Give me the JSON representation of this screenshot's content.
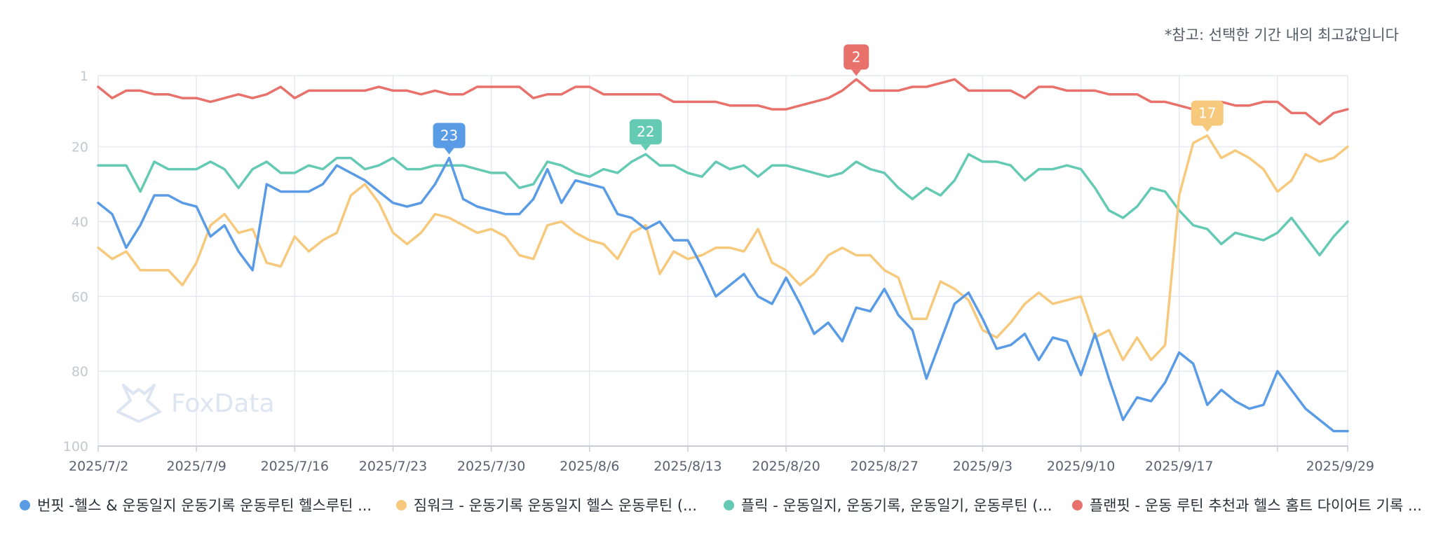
{
  "note": "*참고: 선택한 기간 내의 최고값입니다",
  "watermark": "FoxData",
  "colors": {
    "blue": "#5a9be6",
    "yellow": "#f6c97c",
    "teal": "#65cab4",
    "red": "#e8716b",
    "grid": "#e6e9ef",
    "axis": "#c9ced6"
  },
  "legend": [
    {
      "label": "번핏 -헬스 & 운동일지 운동기록 운동루틴 헬스루틴 ...",
      "color": "#5a9be6"
    },
    {
      "label": "짐워크 - 운동기록 운동일지 헬스 운동루틴 (...",
      "color": "#f6c97c"
    },
    {
      "label": "플릭 - 운동일지, 운동기록, 운동일기, 운동루틴 (...",
      "color": "#65cab4"
    },
    {
      "label": "플랜핏 - 운동 루틴 추천과 헬스 홈트 다이어트 기록 ...",
      "color": "#e8716b"
    }
  ],
  "chart_data": {
    "type": "line",
    "x_start": "2025/7/2",
    "x_end": "2025/9/29",
    "x_tick_labels": [
      "2025/7/2",
      "2025/7/9",
      "2025/7/16",
      "2025/7/23",
      "2025/7/30",
      "2025/8/6",
      "2025/8/13",
      "2025/8/20",
      "2025/8/27",
      "2025/9/3",
      "2025/9/10",
      "2025/9/17",
      "2025/9/29"
    ],
    "y_tick_labels": [
      "1",
      "20",
      "40",
      "60",
      "80",
      "100"
    ],
    "y_reversed": true,
    "ylim": [
      1,
      100
    ],
    "grid": true,
    "legend_position": "bottom",
    "series": [
      {
        "name": "번핏 -헬스 & 운동일지 운동기록 운동루틴 헬스루틴 ...",
        "color": "#5a9be6",
        "values": [
          35,
          38,
          47,
          41,
          33,
          33,
          35,
          36,
          44,
          41,
          48,
          53,
          30,
          32,
          32,
          32,
          30,
          25,
          27,
          29,
          32,
          35,
          36,
          35,
          30,
          23,
          34,
          36,
          37,
          38,
          38,
          34,
          26,
          35,
          29,
          30,
          31,
          38,
          39,
          42,
          40,
          45,
          45,
          52,
          60,
          57,
          54,
          60,
          62,
          55,
          62,
          70,
          67,
          72,
          63,
          64,
          58,
          65,
          69,
          82,
          72,
          62,
          59,
          66,
          74,
          73,
          70,
          77,
          71,
          72,
          81,
          70,
          82,
          93,
          87,
          88,
          83,
          75,
          78,
          89,
          85,
          88,
          90,
          89,
          80,
          85,
          90,
          93,
          96,
          96
        ]
      },
      {
        "name": "짐워크 - 운동기록 운동일지 헬스 운동루틴 (...",
        "color": "#f6c97c",
        "values": [
          47,
          50,
          48,
          53,
          53,
          53,
          57,
          51,
          41,
          38,
          43,
          42,
          51,
          52,
          44,
          48,
          45,
          43,
          33,
          30,
          35,
          43,
          46,
          43,
          38,
          39,
          41,
          43,
          42,
          44,
          49,
          50,
          41,
          40,
          43,
          45,
          46,
          50,
          43,
          41,
          54,
          48,
          50,
          49,
          47,
          47,
          48,
          42,
          51,
          53,
          57,
          54,
          49,
          47,
          49,
          49,
          53,
          55,
          66,
          66,
          56,
          58,
          61,
          69,
          71,
          67,
          62,
          59,
          62,
          61,
          60,
          71,
          69,
          77,
          71,
          77,
          73,
          33,
          19,
          17,
          23,
          21,
          23,
          26,
          32,
          29,
          22,
          24,
          23,
          20
        ]
      },
      {
        "name": "플릭 - 운동일지, 운동기록, 운동일기, 운동루틴 (...",
        "color": "#65cab4",
        "values": [
          25,
          25,
          25,
          32,
          24,
          26,
          26,
          26,
          24,
          26,
          31,
          26,
          24,
          27,
          27,
          25,
          26,
          23,
          23,
          26,
          25,
          23,
          26,
          26,
          25,
          25,
          25,
          26,
          27,
          27,
          31,
          30,
          24,
          25,
          27,
          28,
          26,
          27,
          24,
          22,
          25,
          25,
          27,
          28,
          24,
          26,
          25,
          28,
          25,
          25,
          26,
          27,
          28,
          27,
          24,
          26,
          27,
          31,
          34,
          31,
          33,
          29,
          22,
          24,
          24,
          25,
          29,
          26,
          26,
          25,
          26,
          31,
          37,
          39,
          36,
          31,
          32,
          37,
          41,
          42,
          46,
          43,
          44,
          45,
          43,
          39,
          44,
          49,
          44,
          40
        ]
      },
      {
        "name": "플랜핏 - 운동 루틴 추천과 헬스 홈트 다이어트 기록 ...",
        "color": "#e8716b",
        "values": [
          4,
          7,
          5,
          5,
          6,
          6,
          7,
          7,
          8,
          7,
          6,
          7,
          6,
          4,
          7,
          5,
          5,
          5,
          5,
          5,
          4,
          5,
          5,
          6,
          5,
          6,
          6,
          4,
          4,
          4,
          4,
          7,
          6,
          6,
          4,
          4,
          6,
          6,
          6,
          6,
          6,
          8,
          8,
          8,
          8,
          9,
          9,
          9,
          10,
          10,
          9,
          8,
          7,
          5,
          2,
          5,
          5,
          5,
          4,
          4,
          3,
          2,
          5,
          5,
          5,
          5,
          7,
          4,
          4,
          5,
          5,
          5,
          6,
          6,
          6,
          8,
          8,
          9,
          10,
          11,
          8,
          9,
          9,
          8,
          8,
          11,
          11,
          14,
          11,
          10
        ]
      }
    ],
    "annotations": [
      {
        "series": 0,
        "index": 25,
        "label": "23",
        "color": "#5a9be6"
      },
      {
        "series": 2,
        "index": 39,
        "label": "22",
        "color": "#65cab4"
      },
      {
        "series": 3,
        "index": 54,
        "label": "2",
        "color": "#e8716b"
      },
      {
        "series": 1,
        "index": 79,
        "label": "17",
        "color": "#f6c97c"
      }
    ]
  }
}
